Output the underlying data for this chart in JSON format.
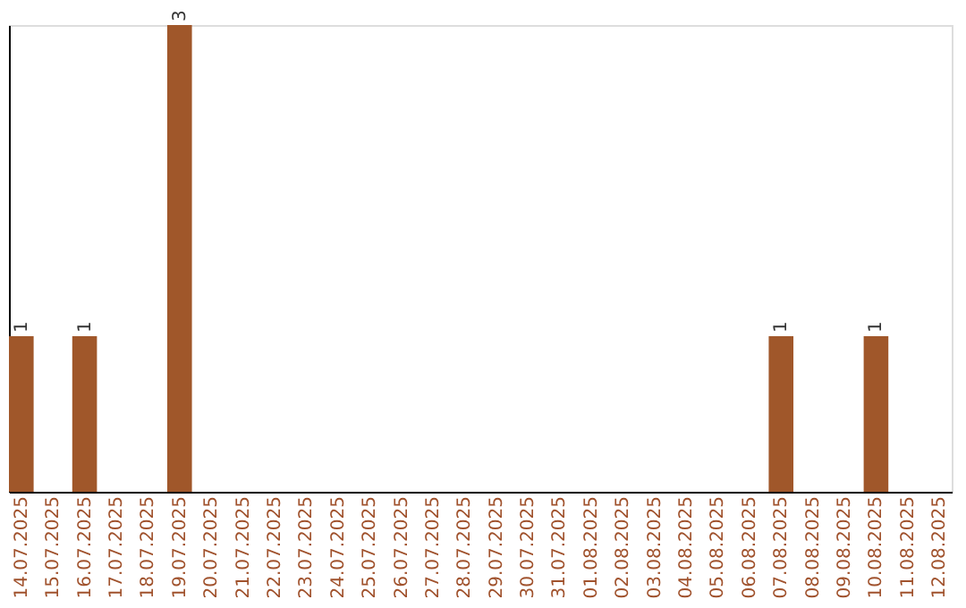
{
  "chart_data": {
    "type": "bar",
    "categories": [
      "14.07.2025",
      "15.07.2025",
      "16.07.2025",
      "17.07.2025",
      "18.07.2025",
      "19.07.2025",
      "20.07.2025",
      "21.07.2025",
      "22.07.2025",
      "23.07.2025",
      "24.07.2025",
      "25.07.2025",
      "26.07.2025",
      "27.07.2025",
      "28.07.2025",
      "29.07.2025",
      "30.07.2025",
      "31.07.2025",
      "01.08.2025",
      "02.08.2025",
      "03.08.2025",
      "04.08.2025",
      "05.08.2025",
      "06.08.2025",
      "07.08.2025",
      "08.08.2025",
      "09.08.2025",
      "10.08.2025",
      "11.08.2025",
      "12.08.2025"
    ],
    "values": [
      1,
      0,
      1,
      0,
      0,
      3,
      0,
      0,
      0,
      0,
      0,
      0,
      0,
      0,
      0,
      0,
      0,
      0,
      0,
      0,
      0,
      0,
      0,
      0,
      1,
      0,
      0,
      1,
      0,
      0
    ],
    "value_labels": [
      "1",
      null,
      "1",
      null,
      null,
      "3",
      null,
      null,
      null,
      null,
      null,
      null,
      null,
      null,
      null,
      null,
      null,
      null,
      null,
      null,
      null,
      null,
      null,
      null,
      "1",
      null,
      null,
      "1",
      null,
      null
    ],
    "color": "#a0572a",
    "tick_labels": "x",
    "grid": false
  }
}
